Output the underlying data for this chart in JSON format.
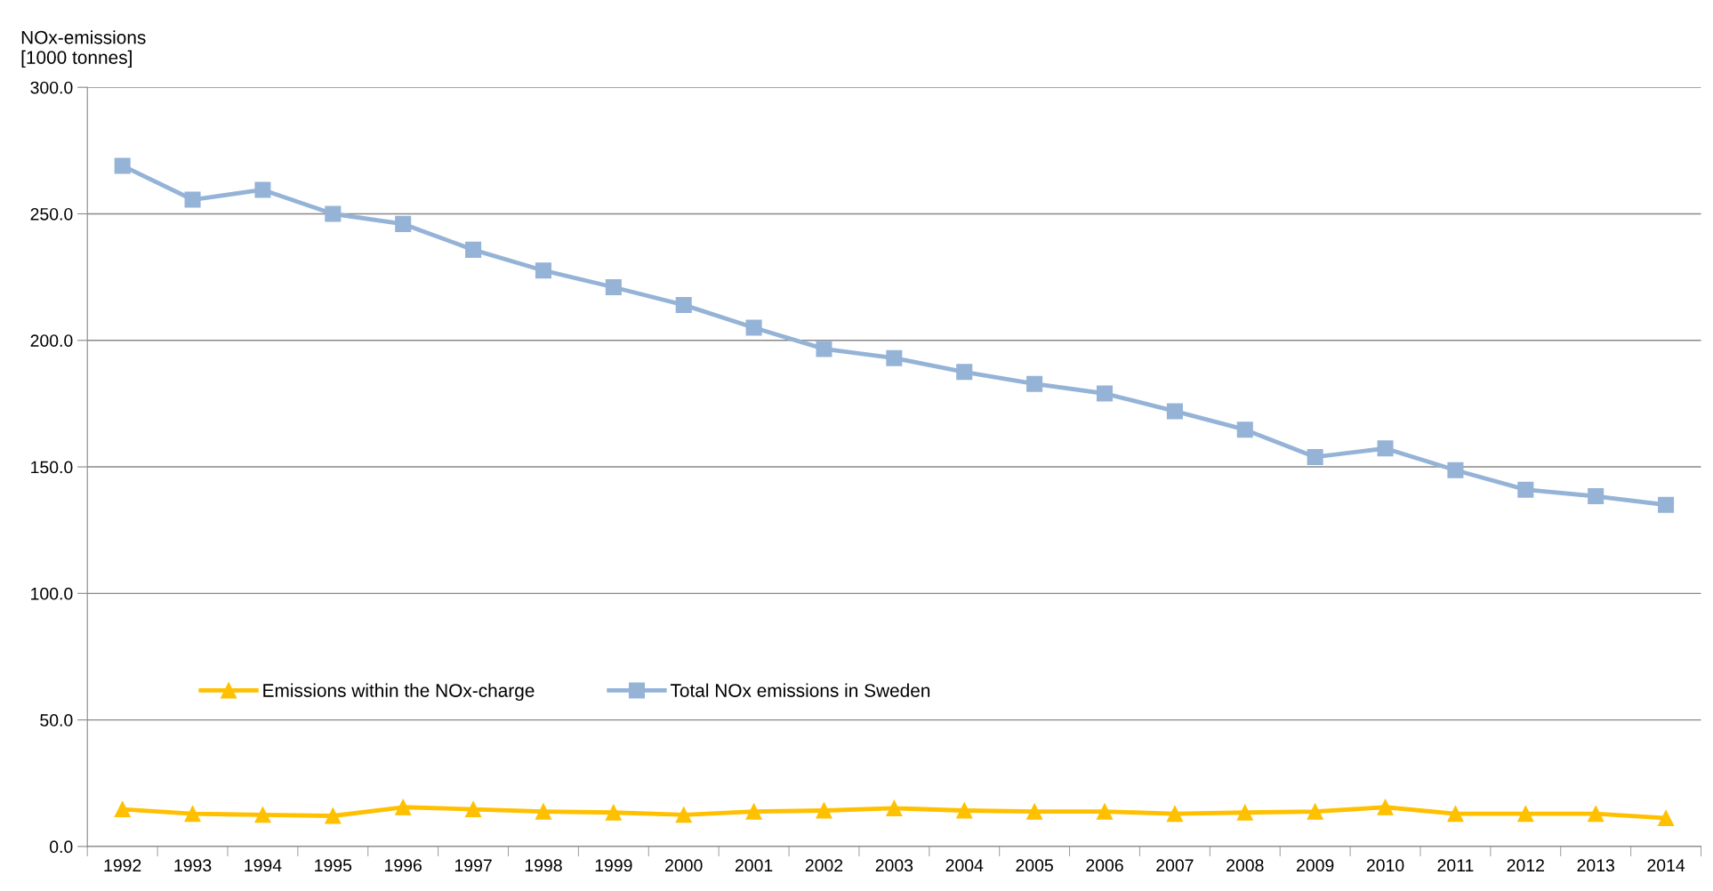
{
  "chart_data": {
    "type": "line",
    "ylabel": "NOx-emissions\n[1000 tonnes]",
    "categories": [
      "1992",
      "1993",
      "1994",
      "1995",
      "1996",
      "1997",
      "1998",
      "1999",
      "2000",
      "2001",
      "2002",
      "2003",
      "2004",
      "2005",
      "2006",
      "2007",
      "2008",
      "2009",
      "2010",
      "2011",
      "2012",
      "2013",
      "2014"
    ],
    "series": [
      {
        "name": "Emissions within the NOx-charge",
        "color": "#ffc000",
        "marker": "triangle",
        "values": [
          14.7,
          12.9,
          12.5,
          12.1,
          15.5,
          14.7,
          13.8,
          13.4,
          12.5,
          13.8,
          14.2,
          15.1,
          14.2,
          13.8,
          13.8,
          12.9,
          13.4,
          13.8,
          15.5,
          12.9,
          12.9,
          12.9,
          11.2
        ]
      },
      {
        "name": "Total NOx emissions in Sweden",
        "color": "#95b3d7",
        "marker": "square",
        "values": [
          269.0,
          255.6,
          259.5,
          250.0,
          246.0,
          235.8,
          227.6,
          221.0,
          214.0,
          205.0,
          196.6,
          193.0,
          187.5,
          182.8,
          179.0,
          172.0,
          164.7,
          153.9,
          157.3,
          148.7,
          141.0,
          138.4,
          135.0
        ]
      }
    ],
    "ylim": [
      0,
      300
    ],
    "yticks": [
      {
        "value": 0,
        "label": "0.0"
      },
      {
        "value": 50,
        "label": "50.0"
      },
      {
        "value": 100,
        "label": "100.0"
      },
      {
        "value": 150,
        "label": "150.0"
      },
      {
        "value": 200,
        "label": "200.0"
      },
      {
        "value": 250,
        "label": "250.0"
      },
      {
        "value": 300,
        "label": "300.0"
      }
    ],
    "grid": "y",
    "legend": "bottom left",
    "line_style": "solid"
  }
}
